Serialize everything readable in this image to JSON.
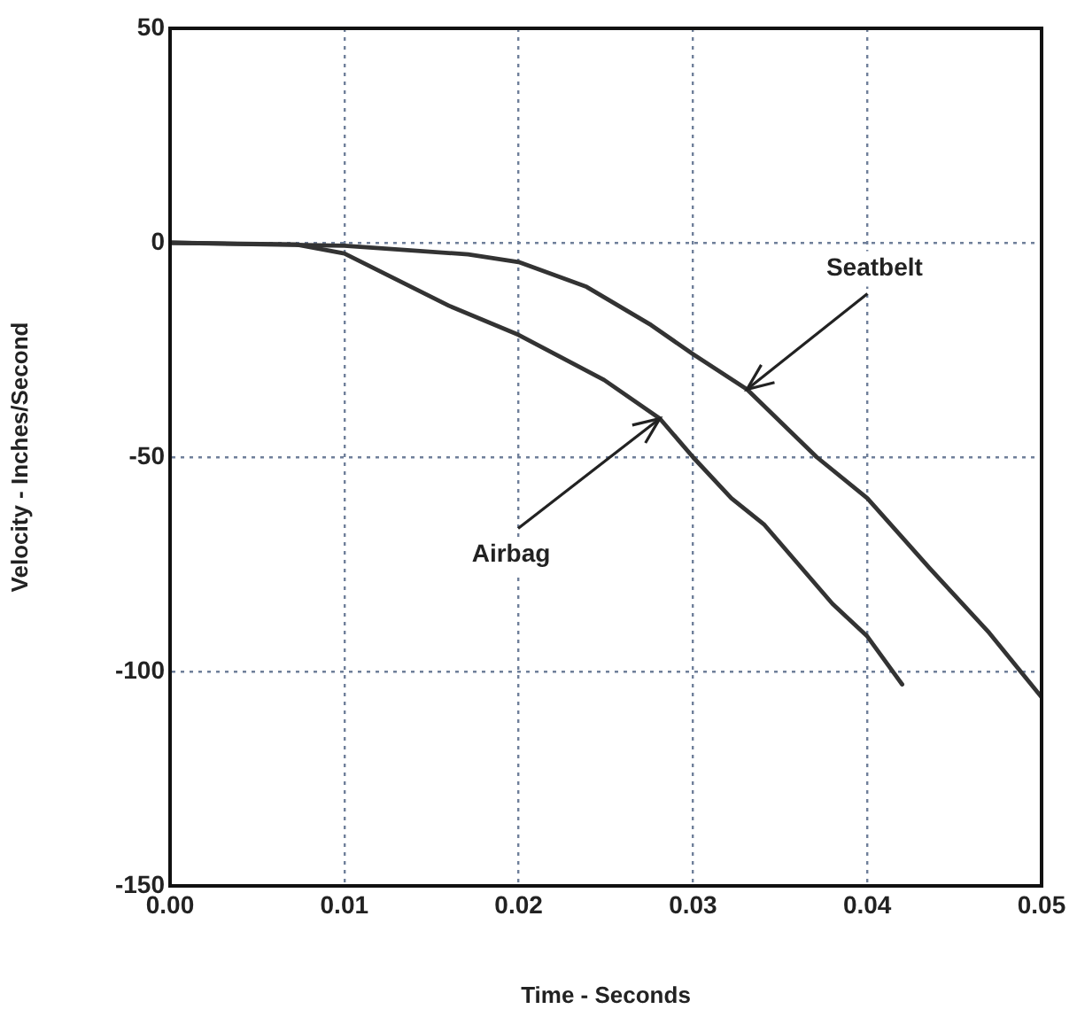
{
  "chart_data": {
    "type": "line",
    "xlabel": "Time - Seconds",
    "ylabel": "Velocity - Inches/Second",
    "xlim": [
      0,
      0.05
    ],
    "ylim": [
      -150,
      50
    ],
    "xticks": [
      {
        "value": 0,
        "label": "0.00"
      },
      {
        "value": 0.01,
        "label": "0.01"
      },
      {
        "value": 0.02,
        "label": "0.02"
      },
      {
        "value": 0.03,
        "label": "0.03"
      },
      {
        "value": 0.04,
        "label": "0.04"
      },
      {
        "value": 0.05,
        "label": "0.05"
      }
    ],
    "yticks": [
      -150,
      -100,
      -50,
      0,
      50
    ],
    "grid": true,
    "legend": false,
    "marker": "none",
    "line_style": "solid",
    "series": [
      {
        "color": "#333333",
        "x": [
          0,
          0.0072,
          0.01,
          0.016,
          0.02,
          0.0249,
          0.0281,
          0.03,
          0.0322,
          0.0341,
          0.038,
          0.04,
          0.042
        ],
        "values": [
          0,
          -0.4,
          -2.5,
          -14.7,
          -21.5,
          -32,
          -41,
          -50,
          -59.6,
          -65.8,
          -84.2,
          -91.8,
          -103
        ]
      },
      {
        "color": "#333333",
        "x": [
          0,
          0.01,
          0.0171,
          0.02,
          0.0239,
          0.0276,
          0.03,
          0.0331,
          0.0371,
          0.04,
          0.0436,
          0.047,
          0.05
        ],
        "values": [
          0,
          -0.7,
          -2.7,
          -4.5,
          -10.3,
          -19.2,
          -26,
          -34.2,
          -50,
          -59.6,
          -76,
          -91,
          -106
        ]
      }
    ],
    "annotations": [
      {
        "text": "Seatbelt",
        "x": 0.0331,
        "y": -34.2
      },
      {
        "text": "Airbag",
        "x": 0.0281,
        "y": -41
      }
    ]
  }
}
